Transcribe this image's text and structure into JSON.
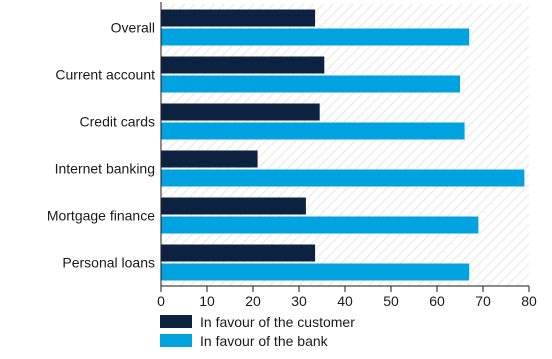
{
  "chart_data": {
    "type": "bar",
    "orientation": "horizontal",
    "categories": [
      "Overall",
      "Current account",
      "Credit cards",
      "Internet banking",
      "Mortgage finance",
      "Personal loans"
    ],
    "series": [
      {
        "name": "In favour of the customer",
        "color": "#0d2240",
        "values": [
          33.5,
          35.5,
          34.5,
          21,
          31.5,
          33.5
        ]
      },
      {
        "name": "In favour of the bank",
        "color": "#00a3e0",
        "values": [
          67,
          65,
          66,
          79,
          69,
          67
        ]
      }
    ],
    "xlim": [
      0,
      80
    ],
    "xticks": [
      0,
      10,
      20,
      30,
      40,
      50,
      60,
      70,
      80
    ],
    "grid": false,
    "background_pattern": "diagonal-hatch",
    "legend_position": "bottom",
    "title": "",
    "xlabel": "",
    "ylabel": ""
  }
}
